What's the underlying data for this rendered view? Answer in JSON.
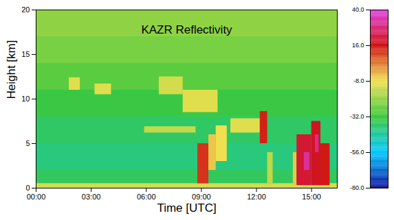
{
  "chart_data": {
    "type": "heatmap",
    "title": "KAZR Reflectivity",
    "x_label": "Time [UTC]",
    "y_label": "Height [km]",
    "xlim": [
      0,
      16.4
    ],
    "xticks": [
      {
        "value": 0,
        "label": "00:00"
      },
      {
        "value": 3,
        "label": "03:00"
      },
      {
        "value": 6,
        "label": "06:00"
      },
      {
        "value": 9,
        "label": "09:00"
      },
      {
        "value": 12,
        "label": "12:00"
      },
      {
        "value": 15,
        "label": "15:00"
      }
    ],
    "ylim": [
      0,
      20
    ],
    "yticks": [
      0,
      5,
      10,
      15,
      20
    ],
    "cells": [
      {
        "x0": 0,
        "x1": 16.4,
        "y0": 0,
        "y1": 0.5,
        "value": -12
      },
      {
        "x0": 0,
        "x1": 16.4,
        "y0": 0.5,
        "y1": 2,
        "value": -36
      },
      {
        "x0": 0,
        "x1": 16.4,
        "y0": 2,
        "y1": 5,
        "value": -40
      },
      {
        "x0": 0,
        "x1": 16.4,
        "y0": 5,
        "y1": 8,
        "value": -37
      },
      {
        "x0": 0,
        "x1": 16.4,
        "y0": 8,
        "y1": 11,
        "value": -33
      },
      {
        "x0": 0,
        "x1": 16.4,
        "y0": 11,
        "y1": 14,
        "value": -28
      },
      {
        "x0": 0,
        "x1": 16.4,
        "y0": 14,
        "y1": 17,
        "value": -24
      },
      {
        "x0": 0,
        "x1": 16.4,
        "y0": 17,
        "y1": 20,
        "value": -21
      },
      {
        "x0": 1.8,
        "x1": 2.4,
        "y0": 11,
        "y1": 12.4,
        "value": -10
      },
      {
        "x0": 3.2,
        "x1": 4.1,
        "y0": 10.5,
        "y1": 11.7,
        "value": -10
      },
      {
        "x0": 6.7,
        "x1": 8.0,
        "y0": 10.5,
        "y1": 12.5,
        "value": -12
      },
      {
        "x0": 8.0,
        "x1": 9.9,
        "y0": 8.5,
        "y1": 11,
        "value": -10
      },
      {
        "x0": 5.9,
        "x1": 8.7,
        "y0": 6.2,
        "y1": 6.9,
        "value": -14
      },
      {
        "x0": 8.8,
        "x1": 9.4,
        "y0": 0.5,
        "y1": 5,
        "value": 12
      },
      {
        "x0": 9.4,
        "x1": 9.8,
        "y0": 2,
        "y1": 6,
        "value": -5
      },
      {
        "x0": 9.8,
        "x1": 10.4,
        "y0": 3,
        "y1": 7,
        "value": -8
      },
      {
        "x0": 10.6,
        "x1": 12.2,
        "y0": 6.2,
        "y1": 7.8,
        "value": -10
      },
      {
        "x0": 12.2,
        "x1": 12.6,
        "y0": 5,
        "y1": 8.6,
        "value": 14
      },
      {
        "x0": 12.6,
        "x1": 12.9,
        "y0": 0.5,
        "y1": 4,
        "value": -15
      },
      {
        "x0": 14.0,
        "x1": 14.2,
        "y0": 0.3,
        "y1": 4,
        "value": -5
      },
      {
        "x0": 14.2,
        "x1": 15.0,
        "y0": 0.3,
        "y1": 6,
        "value": 20
      },
      {
        "x0": 15.0,
        "x1": 15.5,
        "y0": 0.3,
        "y1": 7.5,
        "value": 18
      },
      {
        "x0": 15.5,
        "x1": 16.0,
        "y0": 0.3,
        "y1": 5,
        "value": 15
      },
      {
        "x0": 14.6,
        "x1": 14.9,
        "y0": 2,
        "y1": 4,
        "value": 32
      },
      {
        "x0": 15.2,
        "x1": 15.4,
        "y0": 4,
        "y1": 6,
        "value": 30
      }
    ],
    "colorbar": {
      "range": [
        -80,
        40
      ],
      "ticks": [
        {
          "value": 40,
          "label": "40.0"
        },
        {
          "value": 16,
          "label": "16.0"
        },
        {
          "value": -8,
          "label": "-8.0"
        },
        {
          "value": -32,
          "label": "-32.0"
        },
        {
          "value": -56,
          "label": "-56.0"
        },
        {
          "value": -80,
          "label": "-80.0"
        }
      ],
      "colors": [
        "#1010a0",
        "#00c8ff",
        "#3cc83c",
        "#f0e050",
        "#d01010",
        "#e040e0"
      ]
    }
  }
}
